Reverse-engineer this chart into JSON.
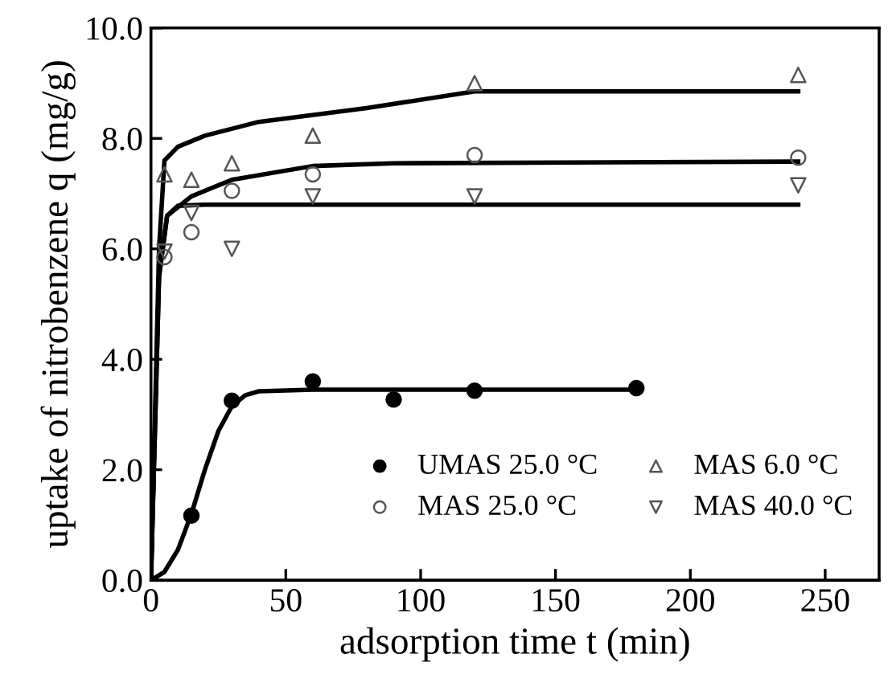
{
  "chart_data": {
    "type": "scatter",
    "xlabel": "adsorption time t (min)",
    "ylabel": "uptake of nitrobenzene q (mg/g)",
    "xlim": [
      0,
      270
    ],
    "xticks": [
      0,
      50,
      100,
      150,
      200,
      250
    ],
    "ylim": [
      0,
      10
    ],
    "yticks": [
      {
        "value": 0,
        "label": "0.0"
      },
      {
        "value": 2,
        "label": "2.0"
      },
      {
        "value": 4,
        "label": "4.0"
      },
      {
        "value": 6,
        "label": "6.0"
      },
      {
        "value": 8,
        "label": "8.0"
      },
      {
        "value": 10,
        "label": "10.0"
      }
    ],
    "grid": false,
    "legend": "bottom right",
    "series": [
      {
        "name": "UMAS 25.0 °C",
        "color": "#000000",
        "marker": "circle",
        "x": [
          15,
          30,
          60,
          90,
          120,
          180
        ],
        "values": [
          1.17,
          3.25,
          3.6,
          3.27,
          3.43,
          3.48
        ]
      },
      {
        "name": "MAS 6.0 °C",
        "color": "#555555",
        "marker": "triangle",
        "x": [
          5,
          15,
          30,
          60,
          120,
          240
        ],
        "values": [
          7.35,
          7.25,
          7.55,
          8.05,
          9.0,
          9.15
        ]
      },
      {
        "name": "MAS 25.0 °C",
        "color": "#555555",
        "marker": "circle",
        "x": [
          5,
          15,
          30,
          60,
          120,
          240
        ],
        "values": [
          5.85,
          6.3,
          7.05,
          7.35,
          7.7,
          7.65
        ]
      },
      {
        "name": "MAS 40.0 °C",
        "color": "#555555",
        "marker": "triangle_down",
        "x": [
          5,
          15,
          30,
          60,
          120,
          240
        ],
        "values": [
          5.95,
          6.65,
          6.0,
          6.95,
          6.95,
          7.15
        ]
      },
      {
        "type": "line",
        "color": "#000000",
        "x": [
          0,
          5,
          10,
          15,
          20,
          25,
          30,
          35,
          40,
          60,
          180
        ],
        "values": [
          0,
          0.15,
          0.55,
          1.2,
          2.0,
          2.7,
          3.15,
          3.35,
          3.42,
          3.45,
          3.45
        ]
      },
      {
        "type": "line",
        "color": "#000000",
        "x": [
          0,
          3,
          5,
          10,
          20,
          40,
          80,
          120,
          240
        ],
        "values": [
          0,
          6.0,
          7.6,
          7.85,
          8.05,
          8.3,
          8.55,
          8.85,
          8.85
        ]
      },
      {
        "type": "line",
        "color": "#000000",
        "x": [
          0,
          3,
          6,
          15,
          30,
          60,
          90,
          240
        ],
        "values": [
          0,
          5.5,
          6.6,
          6.95,
          7.25,
          7.5,
          7.55,
          7.58
        ]
      },
      {
        "type": "line",
        "color": "#000000",
        "x": [
          0,
          3,
          6,
          10,
          20,
          240
        ],
        "values": [
          0,
          5.5,
          6.6,
          6.78,
          6.8,
          6.8
        ]
      }
    ]
  }
}
